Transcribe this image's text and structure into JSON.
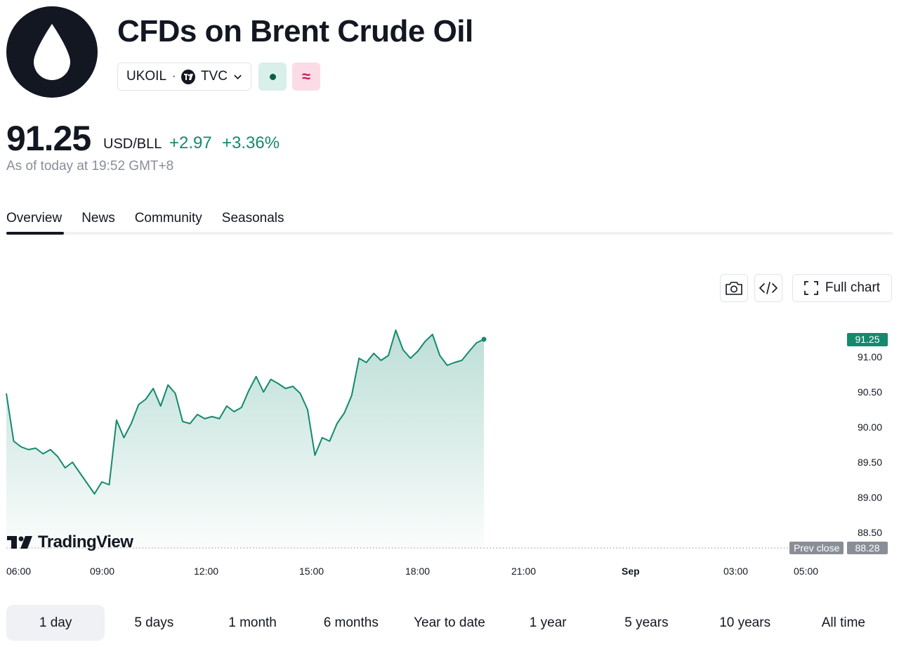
{
  "header": {
    "title": "CFDs on Brent Crude Oil",
    "logo_icon": "oil-drop-icon",
    "symbol": "UKOIL",
    "separator": "·",
    "exchange": "TVC",
    "status_open_icon": "market-open-dot-icon",
    "status_cfd_icon": "approx-icon",
    "status_cfd_glyph": "≈"
  },
  "quote": {
    "price": "91.25",
    "unit": "USD/BLL",
    "change": "+2.97",
    "change_pct": "+3.36%",
    "as_of": "As of today at 19:52 GMT+8"
  },
  "tabs": [
    {
      "label": "Overview",
      "active": true
    },
    {
      "label": "News",
      "active": false
    },
    {
      "label": "Community",
      "active": false
    },
    {
      "label": "Seasonals",
      "active": false
    }
  ],
  "toolbar": {
    "snapshot_icon": "camera-icon",
    "embed_icon": "code-icon",
    "full_chart_label": "Full chart"
  },
  "chart_data": {
    "type": "area",
    "color": "#138a6e",
    "y_ticks": [
      "91.00",
      "90.50",
      "90.00",
      "89.50",
      "89.00",
      "88.50"
    ],
    "ylim": [
      88.28,
      91.5
    ],
    "x_ticks": [
      {
        "label": "06:00",
        "bold": false
      },
      {
        "label": "09:00",
        "bold": false
      },
      {
        "label": "12:00",
        "bold": false
      },
      {
        "label": "15:00",
        "bold": false
      },
      {
        "label": "18:00",
        "bold": false
      },
      {
        "label": "21:00",
        "bold": false
      },
      {
        "label": "Sep",
        "bold": true
      },
      {
        "label": "03:00",
        "bold": false
      },
      {
        "label": "05:00",
        "bold": false
      }
    ],
    "last_price_label": "91.25",
    "prev_close_label": "Prev close",
    "prev_close_value": "88.28",
    "series": [
      {
        "values": [
          90.48,
          89.8,
          89.72,
          89.68,
          89.7,
          89.62,
          89.68,
          89.58,
          89.42,
          89.5,
          89.35,
          89.2,
          89.05,
          89.22,
          89.18,
          90.1,
          89.85,
          90.05,
          90.32,
          90.4,
          90.55,
          90.3,
          90.6,
          90.48,
          90.08,
          90.05,
          90.18,
          90.12,
          90.15,
          90.12,
          90.3,
          90.22,
          90.28,
          90.52,
          90.72,
          90.5,
          90.68,
          90.62,
          90.55,
          90.58,
          90.48,
          90.25,
          89.6,
          89.85,
          89.8,
          90.05,
          90.2,
          90.45,
          90.98,
          90.92,
          91.05,
          90.95,
          91.02,
          91.38,
          91.1,
          90.98,
          91.08,
          91.22,
          91.32,
          91.02,
          90.88,
          90.92,
          90.95,
          91.08,
          91.2,
          91.25
        ]
      }
    ]
  },
  "branding": {
    "name": "TradingView"
  },
  "ranges": [
    {
      "label": "1 day",
      "active": true
    },
    {
      "label": "5 days",
      "active": false
    },
    {
      "label": "1 month",
      "active": false
    },
    {
      "label": "6 months",
      "active": false
    },
    {
      "label": "Year to date",
      "active": false
    },
    {
      "label": "1 year",
      "active": false
    },
    {
      "label": "5 years",
      "active": false
    },
    {
      "label": "10 years",
      "active": false
    },
    {
      "label": "All time",
      "active": false
    }
  ]
}
